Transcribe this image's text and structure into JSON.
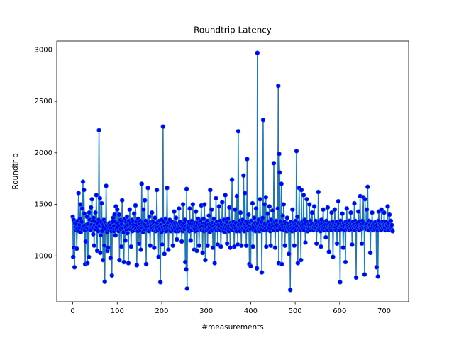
{
  "chart_data": {
    "type": "line",
    "title": "Roundtrip Latency",
    "x_label": "#measurements",
    "y_label": "Roundtrip",
    "x": [
      0,
      1,
      2,
      3,
      4,
      5,
      6,
      7,
      8,
      9,
      10,
      11,
      12,
      13,
      14,
      15,
      16,
      17,
      18,
      19,
      20,
      21,
      22,
      23,
      24,
      25,
      26,
      27,
      28,
      29,
      30,
      31,
      32,
      33,
      34,
      35,
      36,
      37,
      38,
      39,
      40,
      41,
      42,
      43,
      44,
      45,
      46,
      47,
      48,
      49,
      50,
      51,
      52,
      53,
      54,
      55,
      56,
      57,
      58,
      59,
      60,
      61,
      62,
      63,
      64,
      65,
      66,
      67,
      68,
      69,
      70,
      71,
      72,
      73,
      74,
      75,
      76,
      77,
      78,
      79,
      80,
      81,
      82,
      83,
      84,
      85,
      86,
      87,
      88,
      89,
      90,
      91,
      92,
      93,
      94,
      95,
      96,
      97,
      98,
      99,
      100,
      101,
      102,
      103,
      104,
      105,
      106,
      107,
      108,
      109,
      110,
      111,
      112,
      113,
      114,
      115,
      116,
      117,
      118,
      119,
      120,
      121,
      122,
      123,
      124,
      125,
      126,
      127,
      128,
      129,
      130,
      131,
      132,
      133,
      134,
      135,
      136,
      137,
      138,
      139,
      140,
      141,
      142,
      143,
      144,
      145,
      146,
      147,
      148,
      149,
      150,
      151,
      152,
      153,
      154,
      155,
      156,
      157,
      158,
      159,
      160,
      161,
      162,
      163,
      164,
      165,
      166,
      167,
      168,
      169,
      170,
      171,
      172,
      173,
      174,
      175,
      176,
      177,
      178,
      179,
      180,
      181,
      182,
      183,
      184,
      185,
      186,
      187,
      188,
      189,
      190,
      191,
      192,
      193,
      194,
      195,
      196,
      197,
      198,
      199,
      200,
      201,
      202,
      203,
      204,
      205,
      206,
      207,
      208,
      209,
      210,
      211,
      212,
      213,
      214,
      215,
      216,
      217,
      218,
      219,
      220,
      221,
      222,
      223,
      224,
      225,
      226,
      227,
      228,
      229,
      230,
      231,
      232,
      233,
      234,
      235,
      236,
      237,
      238,
      239,
      240,
      241,
      242,
      243,
      244,
      245,
      246,
      247,
      248,
      249,
      250,
      251,
      252,
      253,
      254,
      255,
      256,
      257,
      258,
      259,
      260,
      261,
      262,
      263,
      264,
      265,
      266,
      267,
      268,
      269,
      270,
      271,
      272,
      273,
      274,
      275,
      276,
      277,
      278,
      279,
      280,
      281,
      282,
      283,
      284,
      285,
      286,
      287,
      288,
      289,
      290,
      291,
      292,
      293,
      294,
      295,
      296,
      297,
      298,
      299,
      300,
      301,
      302,
      303,
      304,
      305,
      306,
      307,
      308,
      309,
      310,
      311,
      312,
      313,
      314,
      315,
      316,
      317,
      318,
      319,
      320,
      321,
      322,
      323,
      324,
      325,
      326,
      327,
      328,
      329,
      330,
      331,
      332,
      333,
      334,
      335,
      336,
      337,
      338,
      339,
      340,
      341,
      342,
      343,
      344,
      345,
      346,
      347,
      348,
      349,
      350,
      351,
      352,
      353,
      354,
      355,
      356,
      357,
      358,
      359,
      360,
      361,
      362,
      363,
      364,
      365,
      366,
      367,
      368,
      369,
      370,
      371,
      372,
      373,
      374,
      375,
      376,
      377,
      378,
      379,
      380,
      381,
      382,
      383,
      384,
      385,
      386,
      387,
      388,
      389,
      390,
      391,
      392,
      393,
      394,
      395,
      396,
      397,
      398,
      399,
      400,
      401,
      402,
      403,
      404,
      405,
      406,
      407,
      408,
      409,
      410,
      411,
      412,
      413,
      414,
      415,
      416,
      417,
      418,
      419,
      420,
      421,
      422,
      423,
      424,
      425,
      426,
      427,
      428,
      429,
      430,
      431,
      432,
      433,
      434,
      435,
      436,
      437,
      438,
      439,
      440,
      441,
      442,
      443,
      444,
      445,
      446,
      447,
      448,
      449,
      450,
      451,
      452,
      453,
      454,
      455,
      456,
      457,
      458,
      459,
      460,
      461,
      462,
      463,
      464,
      465,
      466,
      467,
      468,
      469,
      470,
      471,
      472,
      473,
      474,
      475,
      476,
      477,
      478,
      479,
      480,
      481,
      482,
      483,
      484,
      485,
      486,
      487,
      488,
      489,
      490,
      491,
      492,
      493,
      494,
      495,
      496,
      497,
      498,
      499,
      500,
      501,
      502,
      503,
      504,
      505,
      506,
      507,
      508,
      509,
      510,
      511,
      512,
      513,
      514,
      515,
      516,
      517,
      518,
      519,
      520,
      521,
      522,
      523,
      524,
      525,
      526,
      527,
      528,
      529,
      530,
      531,
      532,
      533,
      534,
      535,
      536,
      537,
      538,
      539,
      540,
      541,
      542,
      543,
      544,
      545,
      546,
      547,
      548,
      549,
      550,
      551,
      552,
      553,
      554,
      555,
      556,
      557,
      558,
      559,
      560,
      561,
      562,
      563,
      564,
      565,
      566,
      567,
      568,
      569,
      570,
      571,
      572,
      573,
      574,
      575,
      576,
      577,
      578,
      579,
      580,
      581,
      582,
      583,
      584,
      585,
      586,
      587,
      588,
      589,
      590,
      591,
      592,
      593,
      594,
      595,
      596,
      597,
      598,
      599,
      600,
      601,
      602,
      603,
      604,
      605,
      606,
      607,
      608,
      609,
      610,
      611,
      612,
      613,
      614,
      615,
      616,
      617,
      618,
      619,
      620,
      621,
      622,
      623,
      624,
      625,
      626,
      627,
      628,
      629,
      630,
      631,
      632,
      633,
      634,
      635,
      636,
      637,
      638,
      639,
      640,
      641,
      642,
      643,
      644,
      645,
      646,
      647,
      648,
      649,
      650,
      651,
      652,
      653,
      654,
      655,
      656,
      657,
      658,
      659,
      660,
      661,
      662,
      663,
      664,
      665,
      666,
      667,
      668,
      669,
      670,
      671,
      672,
      673,
      674,
      675,
      676,
      677,
      678,
      679,
      680,
      681,
      682,
      683,
      684,
      685,
      686,
      687,
      688,
      689,
      690,
      691,
      692,
      693,
      694,
      695,
      696,
      697,
      698,
      699,
      700,
      701,
      702,
      703,
      704,
      705,
      706,
      707,
      708,
      709,
      710,
      711,
      712,
      713,
      714,
      715,
      716,
      717,
      718,
      719
    ],
    "series": [
      {
        "name": "Roundtrip",
        "color": "#1f77b4",
        "marker_color": "#0000ff",
        "values": [
          1380,
          990,
          1350,
          1080,
          890,
          1320,
          1280,
          1250,
          1310,
          1070,
          1260,
          1340,
          1290,
          1610,
          1240,
          1300,
          1360,
          1500,
          1230,
          1270,
          1330,
          1460,
          1260,
          1720,
          1290,
          1640,
          1410,
          1250,
          920,
          1140,
          1300,
          1270,
          1380,
          930,
          1310,
          1260,
          990,
          1420,
          1350,
          1280,
          1250,
          1470,
          1300,
          1550,
          1340,
          1280,
          1210,
          1370,
          1100,
          1300,
          1260,
          1420,
          1330,
          1590,
          1280,
          1050,
          1310,
          1240,
          1350,
          2220,
          1290,
          1560,
          1030,
          1200,
          1330,
          1510,
          1240,
          1300,
          960,
          1280,
          1350,
          1100,
          750,
          1320,
          1260,
          1680,
          1300,
          1230,
          1050,
          1290,
          1080,
          1310,
          1250,
          1320,
          1270,
          980,
          1300,
          1240,
          810,
          1330,
          1270,
          1370,
          1290,
          1240,
          1400,
          1330,
          1200,
          1480,
          1260,
          1310,
          1450,
          1280,
          1320,
          1240,
          1400,
          960,
          1300,
          1350,
          1260,
          1090,
          1310,
          1540,
          1270,
          1340,
          1230,
          940,
          1290,
          1360,
          1150,
          1280,
          1330,
          1250,
          1380,
          1220,
          1300,
          930,
          1340,
          1270,
          1450,
          1260,
          1310,
          1090,
          1280,
          1350,
          1240,
          1330,
          1300,
          1270,
          1410,
          1250,
          1280,
          1490,
          1260,
          1330,
          910,
          1300,
          1240,
          1360,
          1270,
          1120,
          1310,
          1250,
          1340,
          1060,
          1290,
          1700,
          1270,
          1320,
          1230,
          1450,
          1300,
          1260,
          1540,
          1280,
          1340,
          920,
          1270,
          1300,
          1250,
          1660,
          1310,
          1240,
          1380,
          1290,
          1100,
          1330,
          1260,
          1300,
          1420,
          1270,
          1330,
          1250,
          1310,
          1080,
          1290,
          1370,
          1240,
          1300,
          1260,
          1640,
          1320,
          1250,
          1290,
          990,
          1280,
          1340,
          1260,
          745,
          1300,
          1230,
          1350,
          1110,
          1280,
          2255,
          1250,
          1330,
          1020,
          1290,
          1260,
          1360,
          1240,
          1300,
          1660,
          1270,
          1320,
          1060,
          1250,
          1290,
          1350,
          1280,
          1240,
          1310,
          1270,
          1330,
          1260,
          1100,
          1300,
          1250,
          1430,
          1280,
          1320,
          1240,
          1370,
          1290,
          1160,
          1310,
          1260,
          1300,
          1240,
          1460,
          1290,
          1330,
          1250,
          1310,
          1270,
          1140,
          1300,
          1240,
          1500,
          1280,
          1320,
          1260,
          1350,
          940,
          1290,
          870,
          1650,
          683,
          1270,
          1300,
          1260,
          1330,
          1240,
          1460,
          1290,
          1150,
          1310,
          1250,
          1340,
          1280,
          1500,
          1270,
          1310,
          1060,
          1260,
          1320,
          1240,
          1430,
          1290,
          1050,
          1320,
          1250,
          1360,
          1270,
          1100,
          1300,
          1260,
          1340,
          1280,
          1490,
          1250,
          1310,
          1030,
          1290,
          1360,
          1240,
          1500,
          1270,
          960,
          1310,
          1280,
          1250,
          1340,
          1100,
          1300,
          1260,
          1390,
          1280,
          1230,
          1640,
          1310,
          1270,
          1450,
          1250,
          1320,
          1080,
          1290,
          1360,
          1260,
          930,
          1310,
          1270,
          1560,
          1250,
          1330,
          1290,
          1110,
          1300,
          1260,
          1480,
          1280,
          1340,
          1250,
          1090,
          1310,
          1270,
          1520,
          1260,
          1300,
          1240,
          1350,
          1280,
          1230,
          1590,
          1300,
          1260,
          1330,
          1120,
          1290,
          1360,
          1270,
          1240,
          1470,
          1300,
          1080,
          1320,
          1260,
          1300,
          1740,
          1280,
          1250,
          1330,
          1270,
          1090,
          1300,
          1450,
          1260,
          1320,
          1240,
          1580,
          1290,
          1110,
          2210,
          1300,
          1260,
          1340,
          1240,
          1420,
          1280,
          1100,
          1310,
          1260,
          1350,
          1270,
          1780,
          1300,
          1240,
          1610,
          1280,
          1330,
          1100,
          1270,
          1940,
          1310,
          1250,
          1400,
          1290,
          920,
          1330,
          1260,
          900,
          1340,
          1280,
          1260,
          1510,
          1090,
          1300,
          1250,
          1370,
          1280,
          1320,
          1240,
          1460,
          1290,
          880,
          2970,
          1310,
          1260,
          1350,
          1280,
          1240,
          1550,
          1300,
          1260,
          1330,
          840,
          1290,
          1370,
          2320,
          1280,
          1250,
          1500,
          1310,
          1270,
          1570,
          1090,
          1300,
          1250,
          1410,
          1280,
          1330,
          1260,
          1480,
          1300,
          1240,
          1100,
          1350,
          1280,
          1260,
          1440,
          1310,
          1250,
          1900,
          1290,
          1330,
          1080,
          1270,
          1340,
          1260,
          1300,
          1250,
          1460,
          2650,
          930,
          1990,
          1810,
          1280,
          1330,
          1260,
          1700,
          920,
          1300,
          1390,
          1270,
          1500,
          1250,
          1330,
          1100,
          1290,
          1260,
          1310,
          1240,
          1370,
          1280,
          1260,
          1310,
          1020,
          1290,
          1250,
          670,
          1330,
          1270,
          1300,
          1240,
          1450,
          1280,
          1320,
          1260,
          1100,
          1300,
          1250,
          1340,
          1280,
          2017,
          1290,
          1380,
          930,
          1260,
          1320,
          1660,
          1270,
          1300,
          1250,
          960,
          1640,
          1290,
          1330,
          1260,
          1300,
          1590,
          1250,
          1350,
          1290,
          1130,
          1310,
          1270,
          1550,
          1280,
          1240,
          1330,
          1300,
          1260,
          1500,
          1290,
          1340,
          1250,
          1300,
          1270,
          1420,
          1280,
          1310,
          1250,
          1280,
          1480,
          1300,
          1260,
          1340,
          1270,
          1120,
          1310,
          1250,
          1290,
          1620,
          1260,
          1330,
          1280,
          1300,
          1240,
          1090,
          1350,
          1280,
          1260,
          1310,
          1450,
          1290,
          1250,
          1330,
          1270,
          1300,
          1180,
          1340,
          1260,
          1290,
          1470,
          1250,
          1310,
          1040,
          1280,
          1320,
          1260,
          1300,
          1250,
          1420,
          1290,
          1330,
          990,
          1270,
          1310,
          1260,
          1450,
          1280,
          1300,
          1250,
          1330,
          1120,
          1290,
          1260,
          1530,
          1310,
          1270,
          1250,
          745,
          1340,
          1280,
          1300,
          1260,
          1410,
          1290,
          1080,
          1320,
          1270,
          1300,
          1250,
          940,
          1330,
          1280,
          1460,
          1260,
          1310,
          1290,
          1270,
          1340,
          1250,
          1300,
          1280,
          1420,
          1260,
          1310,
          1110,
          1290,
          1330,
          1270,
          1300,
          1510,
          1250,
          1340,
          1280,
          790,
          1300,
          1260,
          1320,
          1270,
          1430,
          1290,
          1250,
          1330,
          1580,
          1280,
          1300,
          1260,
          1120,
          1340,
          1290,
          1570,
          1270,
          1310,
          820,
          1550,
          1280,
          1300,
          1260,
          1450,
          1310,
          1670,
          1280,
          1250,
          1340,
          1290,
          1300,
          1030,
          1270,
          1330,
          1260,
          1420,
          1300,
          1250,
          1320,
          1280,
          1310,
          1260,
          1290,
          1330,
          1270,
          890,
          1300,
          1250,
          800,
          1340,
          1430,
          1280,
          1310,
          1260,
          1300,
          1250,
          1450,
          1290,
          1330,
          1270,
          1300,
          1260,
          1420,
          1280,
          1310,
          1250,
          1330,
          1270,
          1300,
          1290,
          1480,
          1260,
          1320,
          1250,
          1400,
          1290,
          1270,
          1340,
          1260,
          1300,
          1250,
          1240
        ]
      }
    ],
    "xlim": [
      -36,
      755
    ],
    "xticks": [
      0,
      100,
      200,
      300,
      400,
      500,
      600,
      700
    ],
    "ylim": [
      555,
      3085
    ],
    "yticks": [
      1000,
      1500,
      2000,
      2500,
      3000
    ]
  }
}
